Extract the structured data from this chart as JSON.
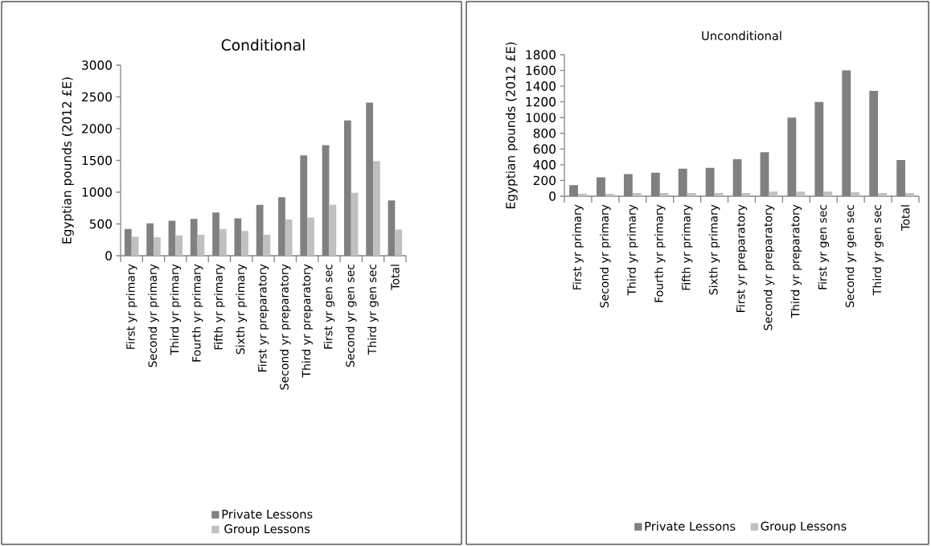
{
  "chart_data": [
    {
      "type": "bar",
      "title": "Conditional",
      "ylabel": "Egyptian pounds (2012 £E)",
      "categories": [
        "First yr primary",
        "Second yr primary",
        "Third yr primary",
        "Fourth yr primary",
        "Fifth yr primary",
        "Sixth yr primary",
        "First yr preparatory",
        "Second yr preparatory",
        "Third yr preparatory",
        "First yr gen sec",
        "Second yr gen sec",
        "Third yr gen sec",
        "Total"
      ],
      "series": [
        {
          "name": "Private Lessons",
          "color": "#808080",
          "values": [
            420,
            510,
            550,
            580,
            680,
            590,
            800,
            920,
            1580,
            1740,
            2130,
            2410,
            870
          ]
        },
        {
          "name": "Group Lessons",
          "color": "#c0c0c0",
          "values": [
            300,
            290,
            320,
            330,
            420,
            390,
            330,
            570,
            600,
            800,
            990,
            1490,
            410
          ]
        }
      ],
      "ylim": [
        0,
        3000
      ],
      "yticks": [
        0,
        500,
        1000,
        1500,
        2000,
        2500,
        3000
      ],
      "legend": "bottom"
    },
    {
      "type": "bar",
      "title": "Unconditional",
      "ylabel": "Egyptian pounds (2012 £E)",
      "categories": [
        "First yr primary",
        "Second yr primary",
        "Third yr primary",
        "Fourth yr primary",
        "Fifth yr primary",
        "Sixth yr primary",
        "First yr preparatory",
        "Second yr preparatory",
        "Third yr preparatory",
        "First yr gen sec",
        "Second yr gen sec",
        "Third yr gen sec",
        "Total"
      ],
      "series": [
        {
          "name": "Private Lessons",
          "color": "#808080",
          "values": [
            140,
            240,
            280,
            300,
            350,
            360,
            470,
            560,
            1000,
            1200,
            1600,
            1340,
            460
          ]
        },
        {
          "name": "Group Lessons",
          "color": "#c0c0c0",
          "values": [
            30,
            30,
            40,
            40,
            40,
            40,
            40,
            60,
            60,
            60,
            50,
            40,
            40
          ]
        }
      ],
      "ylim": [
        0,
        1800
      ],
      "yticks": [
        0,
        200,
        400,
        600,
        800,
        1000,
        1200,
        1400,
        1600,
        1800
      ],
      "legend": "bottom"
    }
  ]
}
